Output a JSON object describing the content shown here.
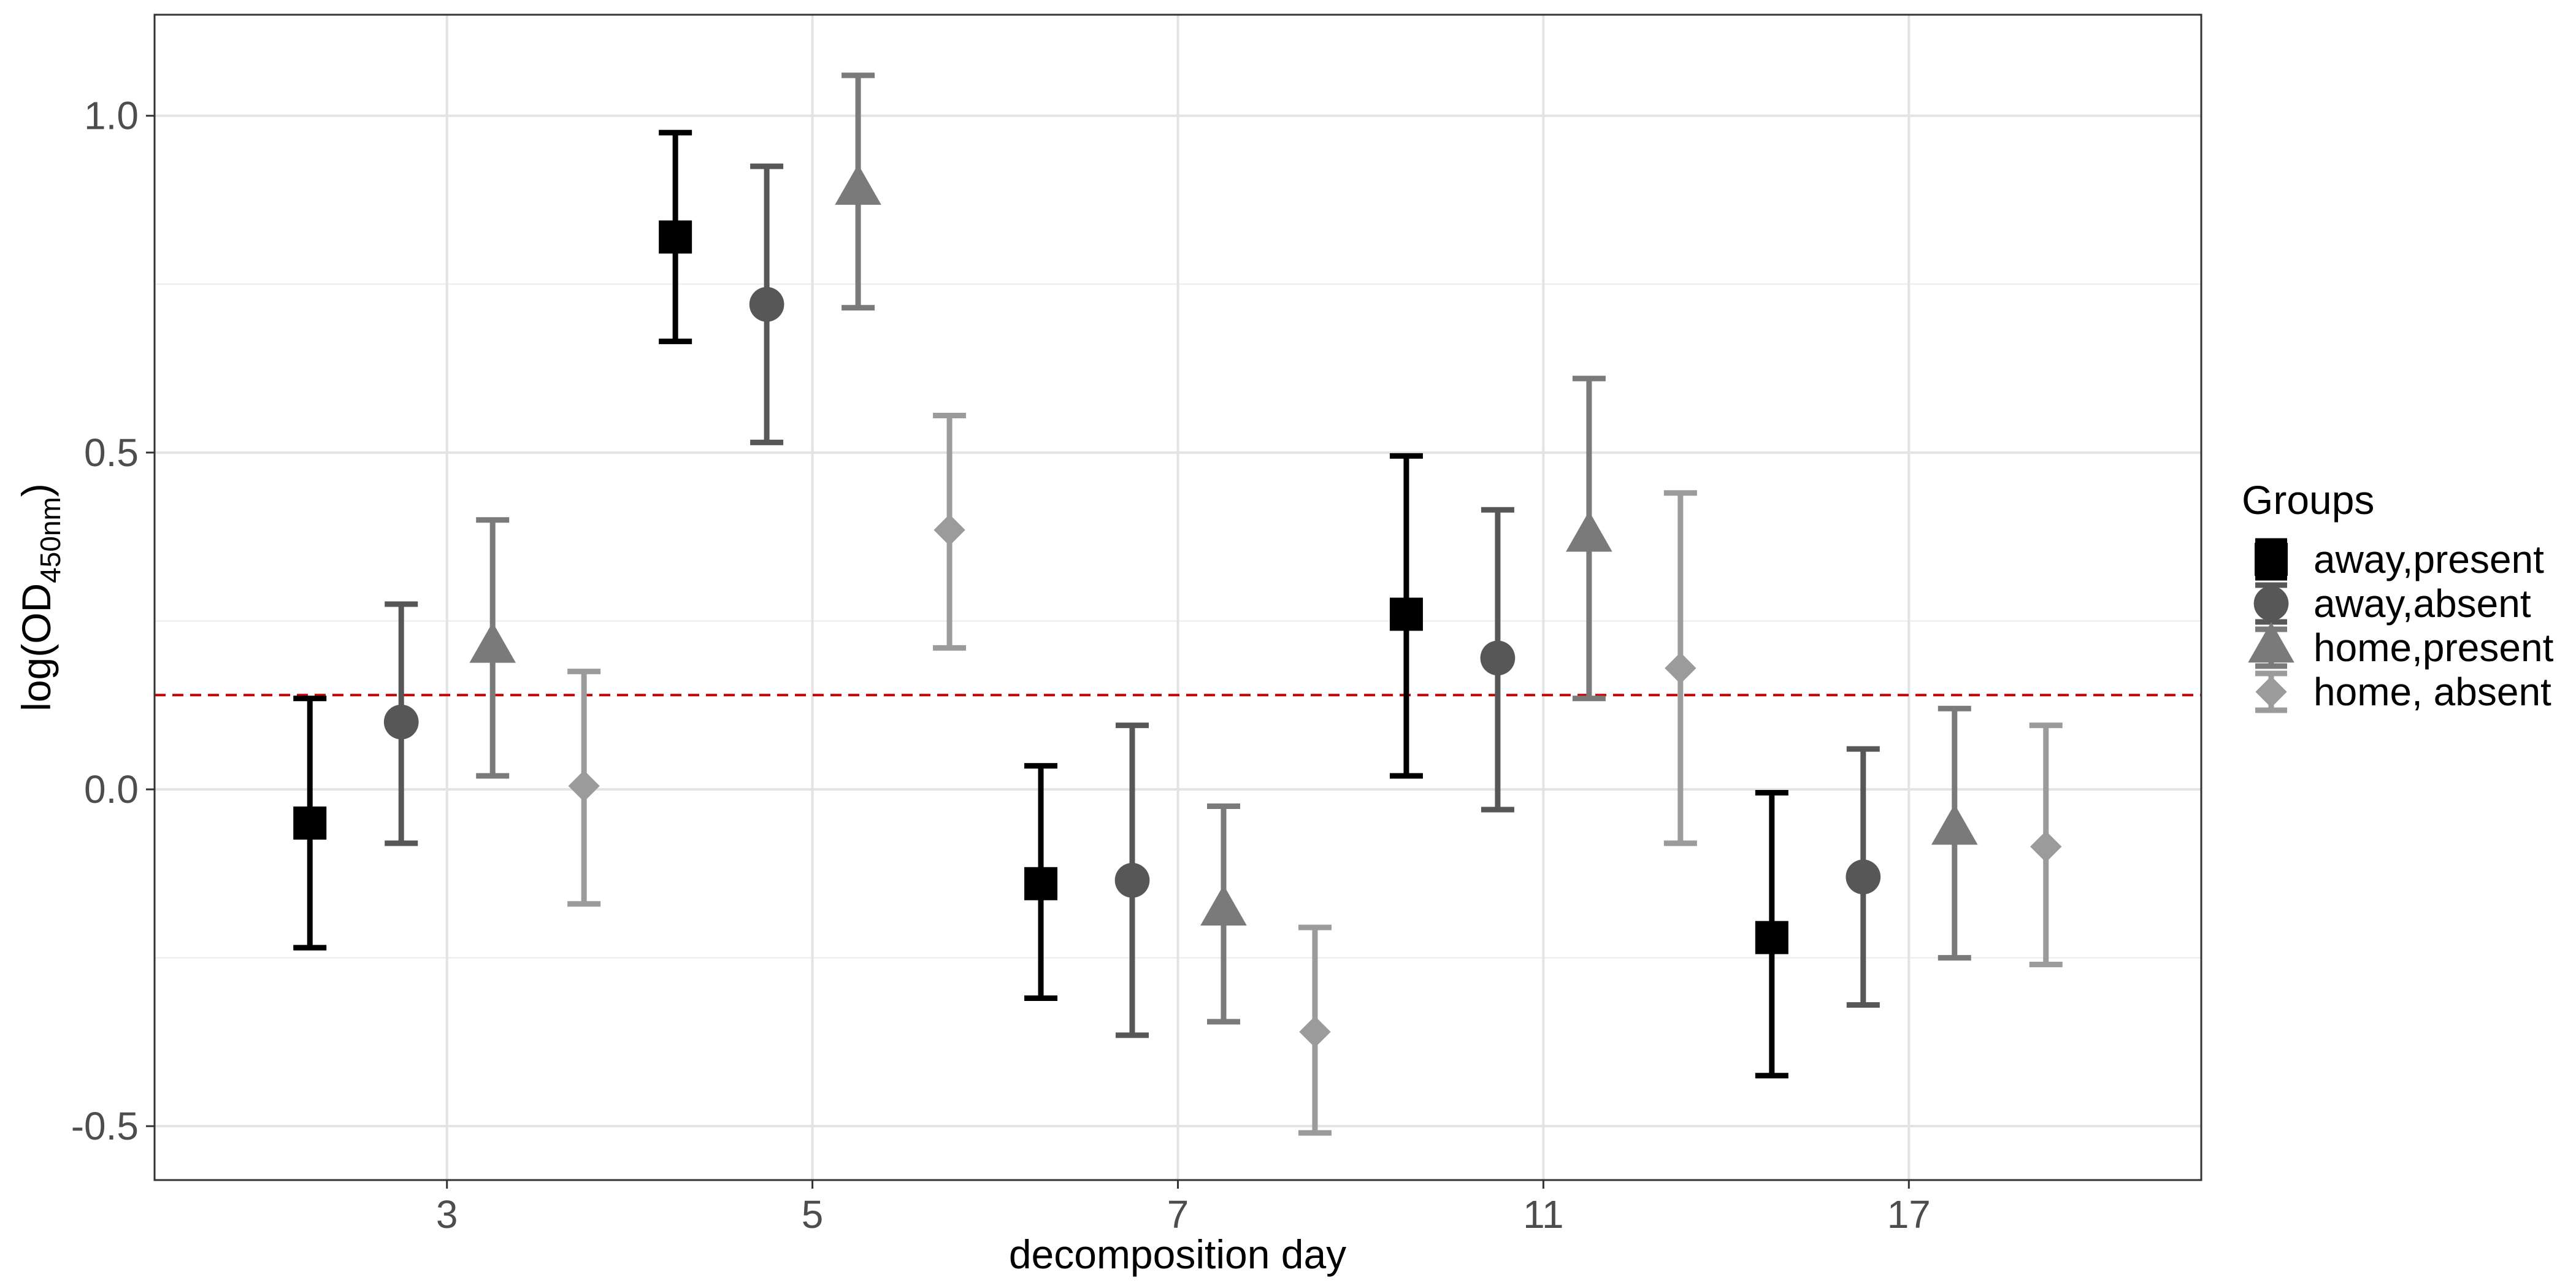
{
  "chart_data": {
    "type": "scatter",
    "title": "",
    "xlabel": "decomposition day",
    "ylabel_main": "log(OD",
    "ylabel_sub": "450nm",
    "ylabel_close": ")",
    "categories": [
      "3",
      "5",
      "7",
      "11",
      "17"
    ],
    "ylim": [
      -0.58,
      1.15
    ],
    "yticks": [
      1.0,
      0.5,
      0.0,
      -0.5
    ],
    "ytick_labels": [
      "1.0",
      "0.5",
      "0.0",
      "-0.5"
    ],
    "grid": true,
    "reference_line": {
      "value": 0.14,
      "color": "#cc0000",
      "style": "dashed"
    },
    "legend": {
      "title": "Groups",
      "position": "right"
    },
    "series": [
      {
        "name": "away,present",
        "shape": "square",
        "color": "#000000",
        "values": [
          -0.05,
          0.82,
          -0.14,
          0.26,
          -0.22
        ],
        "lower": [
          -0.235,
          0.665,
          -0.31,
          0.02,
          -0.425
        ],
        "upper": [
          0.135,
          0.975,
          0.035,
          0.495,
          -0.005
        ]
      },
      {
        "name": "away,absent",
        "shape": "circle",
        "color": "#575757",
        "values": [
          0.1,
          0.72,
          -0.135,
          0.195,
          -0.13
        ],
        "lower": [
          -0.08,
          0.515,
          -0.365,
          -0.03,
          -0.32
        ],
        "upper": [
          0.275,
          0.925,
          0.095,
          0.415,
          0.06
        ]
      },
      {
        "name": "home,present",
        "shape": "triangle",
        "color": "#7a7a7a",
        "values": [
          0.21,
          0.89,
          -0.18,
          0.375,
          -0.06
        ],
        "lower": [
          0.02,
          0.715,
          -0.345,
          0.135,
          -0.25
        ],
        "upper": [
          0.4,
          1.06,
          -0.025,
          0.61,
          0.12
        ]
      },
      {
        "name": "home, absent",
        "shape": "diamond",
        "color": "#9b9b9b",
        "values": [
          0.005,
          0.385,
          -0.36,
          0.18,
          -0.085
        ],
        "lower": [
          -0.17,
          0.21,
          -0.51,
          -0.08,
          -0.26
        ],
        "upper": [
          0.175,
          0.555,
          -0.205,
          0.44,
          0.095
        ]
      }
    ]
  }
}
